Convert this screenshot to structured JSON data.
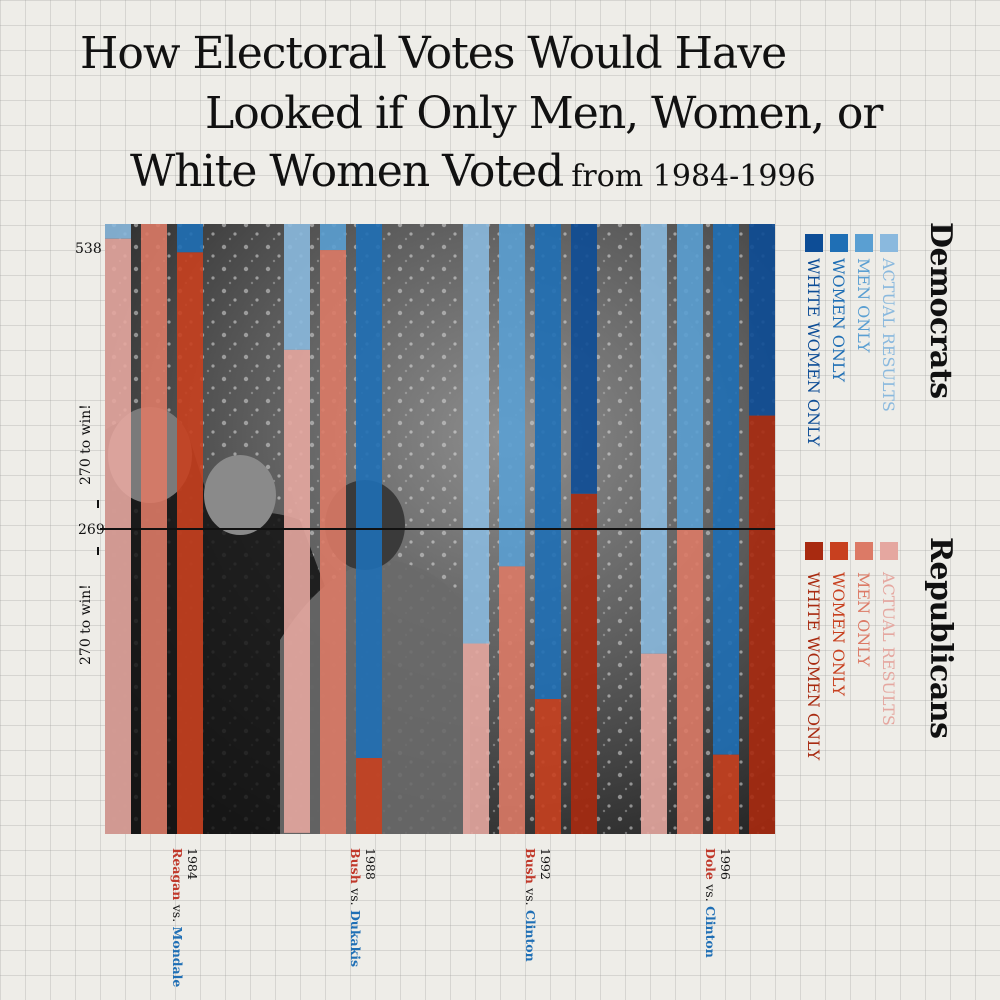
{
  "title": {
    "line1": "How Electoral Votes Would Have",
    "line2": "Looked if Only Men, Women, or",
    "line3": "White Women Voted",
    "subtitle": "from 1984-1996"
  },
  "colors": {
    "background": "#eeede8",
    "dem_actual": "#8ab9de",
    "dem_men": "#5a9fd2",
    "dem_women": "#1f6fb5",
    "dem_white_women": "#0d4d96",
    "rep_actual": "#e5a7a0",
    "rep_men": "#dc7a66",
    "rep_women": "#c8401f",
    "rep_white_women": "#a82a10"
  },
  "legend": {
    "democrats": {
      "title": "Democrats",
      "items": [
        "ACTUAL RESULTS",
        "MEN ONLY",
        "WOMEN ONLY",
        "WHITE WOMEN ONLY"
      ]
    },
    "republicans": {
      "title": "Republicans",
      "items": [
        "ACTUAL RESULTS",
        "MEN ONLY",
        "WOMEN ONLY",
        "WHITE WOMEN ONLY"
      ]
    }
  },
  "axis": {
    "top_label": "538",
    "mid_label": "269",
    "win_label_upper": "270 to win!",
    "win_label_lower": "270 to win!"
  },
  "elections": [
    {
      "year": "1984",
      "republican": "Reagan",
      "vs": "vs.",
      "democrat": "Mondale"
    },
    {
      "year": "1988",
      "republican": "Bush",
      "vs": "vs.",
      "democrat": "Dukakis"
    },
    {
      "year": "1992",
      "republican": "Bush",
      "vs": "vs.",
      "democrat": "Clinton"
    },
    {
      "year": "1996",
      "republican": "Dole",
      "vs": "vs.",
      "democrat": "Clinton"
    }
  ],
  "chart_data": {
    "type": "bar",
    "stacked": true,
    "ylim": [
      0,
      538
    ],
    "reference_line": 269,
    "categories": [
      "1984 Actual Results",
      "1984 Men Only",
      "1984 Women Only",
      "1988 Actual Results",
      "1988 Men Only",
      "1988 Women Only",
      "1992 Actual Results",
      "1992 Men Only",
      "1992 Women Only",
      "1992 White Women Only",
      "1996 Actual Results",
      "1996 Men Only",
      "1996 Women Only",
      "1996 White Women Only"
    ],
    "series": [
      {
        "name": "Democrats",
        "values": [
          13,
          0,
          25,
          111,
          23,
          471,
          370,
          302,
          419,
          238,
          379,
          269,
          468,
          169
        ]
      },
      {
        "name": "Republicans",
        "values": [
          525,
          538,
          513,
          426,
          515,
          67,
          168,
          236,
          119,
          300,
          159,
          269,
          70,
          369
        ]
      }
    ]
  }
}
